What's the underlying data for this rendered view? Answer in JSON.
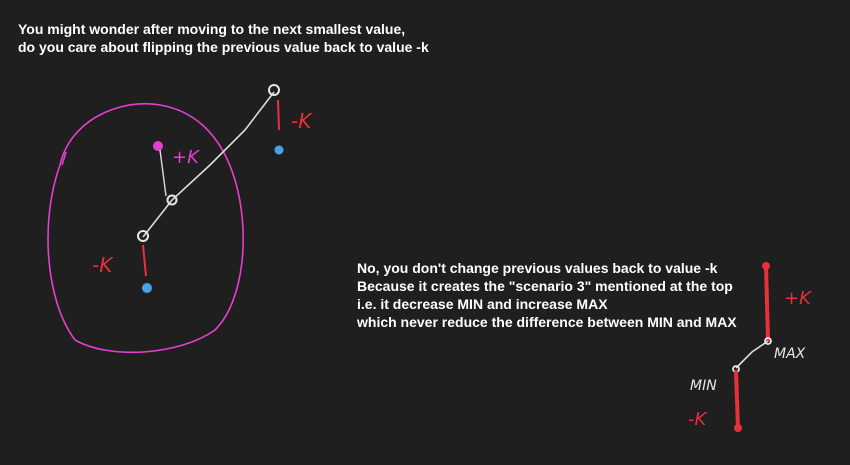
{
  "intro_note": {
    "lines": [
      "You might wonder after moving to the next smallest value,",
      "do you care about flipping the previous value back to value -k"
    ]
  },
  "answer_note": {
    "lines": [
      "No, you don't change previous values back to value -k",
      "Because it creates the \"scenario 3\" mentioned at the top",
      "i.e. it decrease MIN and increase MAX",
      "which never reduce the difference between MIN and MAX"
    ]
  },
  "sketch_labels": {
    "plus_k_left": "+K",
    "minus_k_right": "-K",
    "minus_k_left": "-K",
    "plus_k_right": "+K",
    "max": "MAX",
    "min": "MIN",
    "minus_k_bottom": "-K"
  },
  "colors": {
    "background": "#201f1f",
    "text": "#ffffff",
    "circle": "#e43fd0",
    "red_ink": "#e8303a",
    "blue_dot": "#4aa3e8",
    "white_ink": "#e6e6e6"
  }
}
